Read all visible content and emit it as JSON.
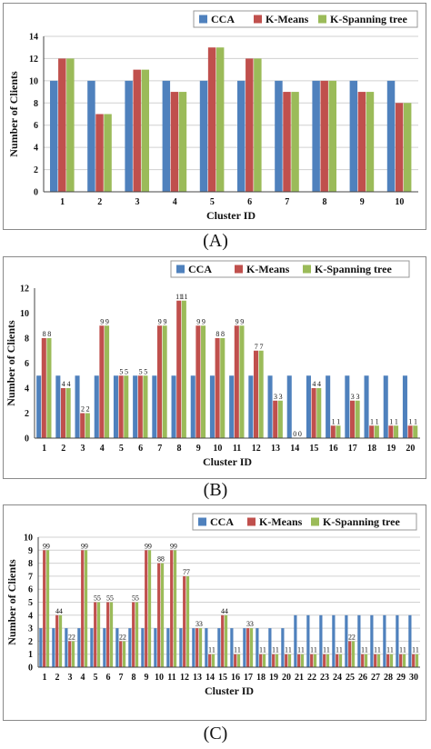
{
  "colors": {
    "cca": "#4f81bd",
    "kmeans": "#c0504d",
    "kspanning": "#9bbb59"
  },
  "chart_data": [
    {
      "type": "bar",
      "panel_label": "(A)",
      "xlabel": "Cluster ID",
      "ylabel": "Number of Clients",
      "ylim": [
        0,
        14
      ],
      "yticks": [
        0,
        2,
        4,
        6,
        8,
        10,
        12,
        14
      ],
      "grid": true,
      "legend_position": "top-right",
      "categories": [
        "1",
        "2",
        "3",
        "4",
        "5",
        "6",
        "7",
        "8",
        "9",
        "10"
      ],
      "series": [
        {
          "name": "CCA",
          "values": [
            10,
            10,
            10,
            10,
            10,
            10,
            10,
            10,
            10,
            10
          ]
        },
        {
          "name": "K-Means",
          "values": [
            12,
            7,
            11,
            9,
            13,
            12,
            9,
            10,
            9,
            8
          ]
        },
        {
          "name": "K-Spanning tree",
          "values": [
            12,
            7,
            11,
            9,
            13,
            12,
            9,
            10,
            9,
            8
          ]
        }
      ]
    },
    {
      "type": "bar",
      "panel_label": "(B)",
      "xlabel": "Cluster ID",
      "ylabel": "Number  of  Clients",
      "ylim": [
        0,
        12
      ],
      "yticks": [
        0,
        2,
        4,
        6,
        8,
        10,
        12
      ],
      "grid": false,
      "legend_position": "top-right",
      "data_labels": true,
      "categories": [
        "1",
        "2",
        "3",
        "4",
        "5",
        "6",
        "7",
        "8",
        "9",
        "10",
        "11",
        "12",
        "13",
        "14",
        "15",
        "16",
        "17",
        "18",
        "19",
        "20"
      ],
      "series": [
        {
          "name": "CCA",
          "values": [
            5,
            5,
            5,
            5,
            5,
            5,
            5,
            5,
            5,
            5,
            5,
            5,
            5,
            5,
            5,
            5,
            5,
            5,
            5,
            5
          ]
        },
        {
          "name": "K-Means",
          "values": [
            8,
            4,
            2,
            9,
            5,
            5,
            9,
            11,
            9,
            8,
            9,
            7,
            3,
            0,
            4,
            1,
            3,
            1,
            1,
            1
          ]
        },
        {
          "name": "K-Spanning tree",
          "values": [
            8,
            4,
            2,
            9,
            5,
            5,
            9,
            11,
            9,
            8,
            9,
            7,
            3,
            0,
            4,
            1,
            3,
            1,
            1,
            1
          ]
        }
      ]
    },
    {
      "type": "bar",
      "panel_label": "(C)",
      "xlabel": "Cluster ID",
      "ylabel": "Number of Clients",
      "ylim": [
        0,
        10
      ],
      "yticks": [
        0,
        1,
        2,
        3,
        4,
        5,
        6,
        7,
        8,
        9,
        10
      ],
      "grid": true,
      "legend_position": "top-right",
      "data_labels": true,
      "categories": [
        "1",
        "2",
        "3",
        "4",
        "5",
        "6",
        "7",
        "8",
        "9",
        "10",
        "11",
        "12",
        "13",
        "14",
        "15",
        "16",
        "17",
        "18",
        "19",
        "20",
        "21",
        "22",
        "23",
        "24",
        "25",
        "26",
        "27",
        "28",
        "29",
        "30"
      ],
      "series": [
        {
          "name": "CCA",
          "values": [
            3,
            3,
            3,
            3,
            3,
            3,
            3,
            3,
            3,
            3,
            3,
            3,
            3,
            3,
            3,
            3,
            3,
            3,
            3,
            3,
            4,
            4,
            4,
            4,
            4,
            4,
            4,
            4,
            4,
            4
          ]
        },
        {
          "name": "K-Means",
          "values": [
            9,
            4,
            2,
            9,
            5,
            5,
            2,
            5,
            9,
            8,
            9,
            7,
            3,
            1,
            4,
            1,
            3,
            1,
            1,
            1,
            1,
            1,
            1,
            1,
            2,
            1,
            1,
            1,
            1,
            1
          ]
        },
        {
          "name": "K-Spanning tree",
          "values": [
            9,
            4,
            2,
            9,
            5,
            5,
            2,
            5,
            9,
            8,
            9,
            7,
            3,
            1,
            4,
            1,
            3,
            1,
            1,
            1,
            1,
            1,
            1,
            1,
            2,
            1,
            1,
            1,
            1,
            1
          ]
        }
      ]
    }
  ]
}
